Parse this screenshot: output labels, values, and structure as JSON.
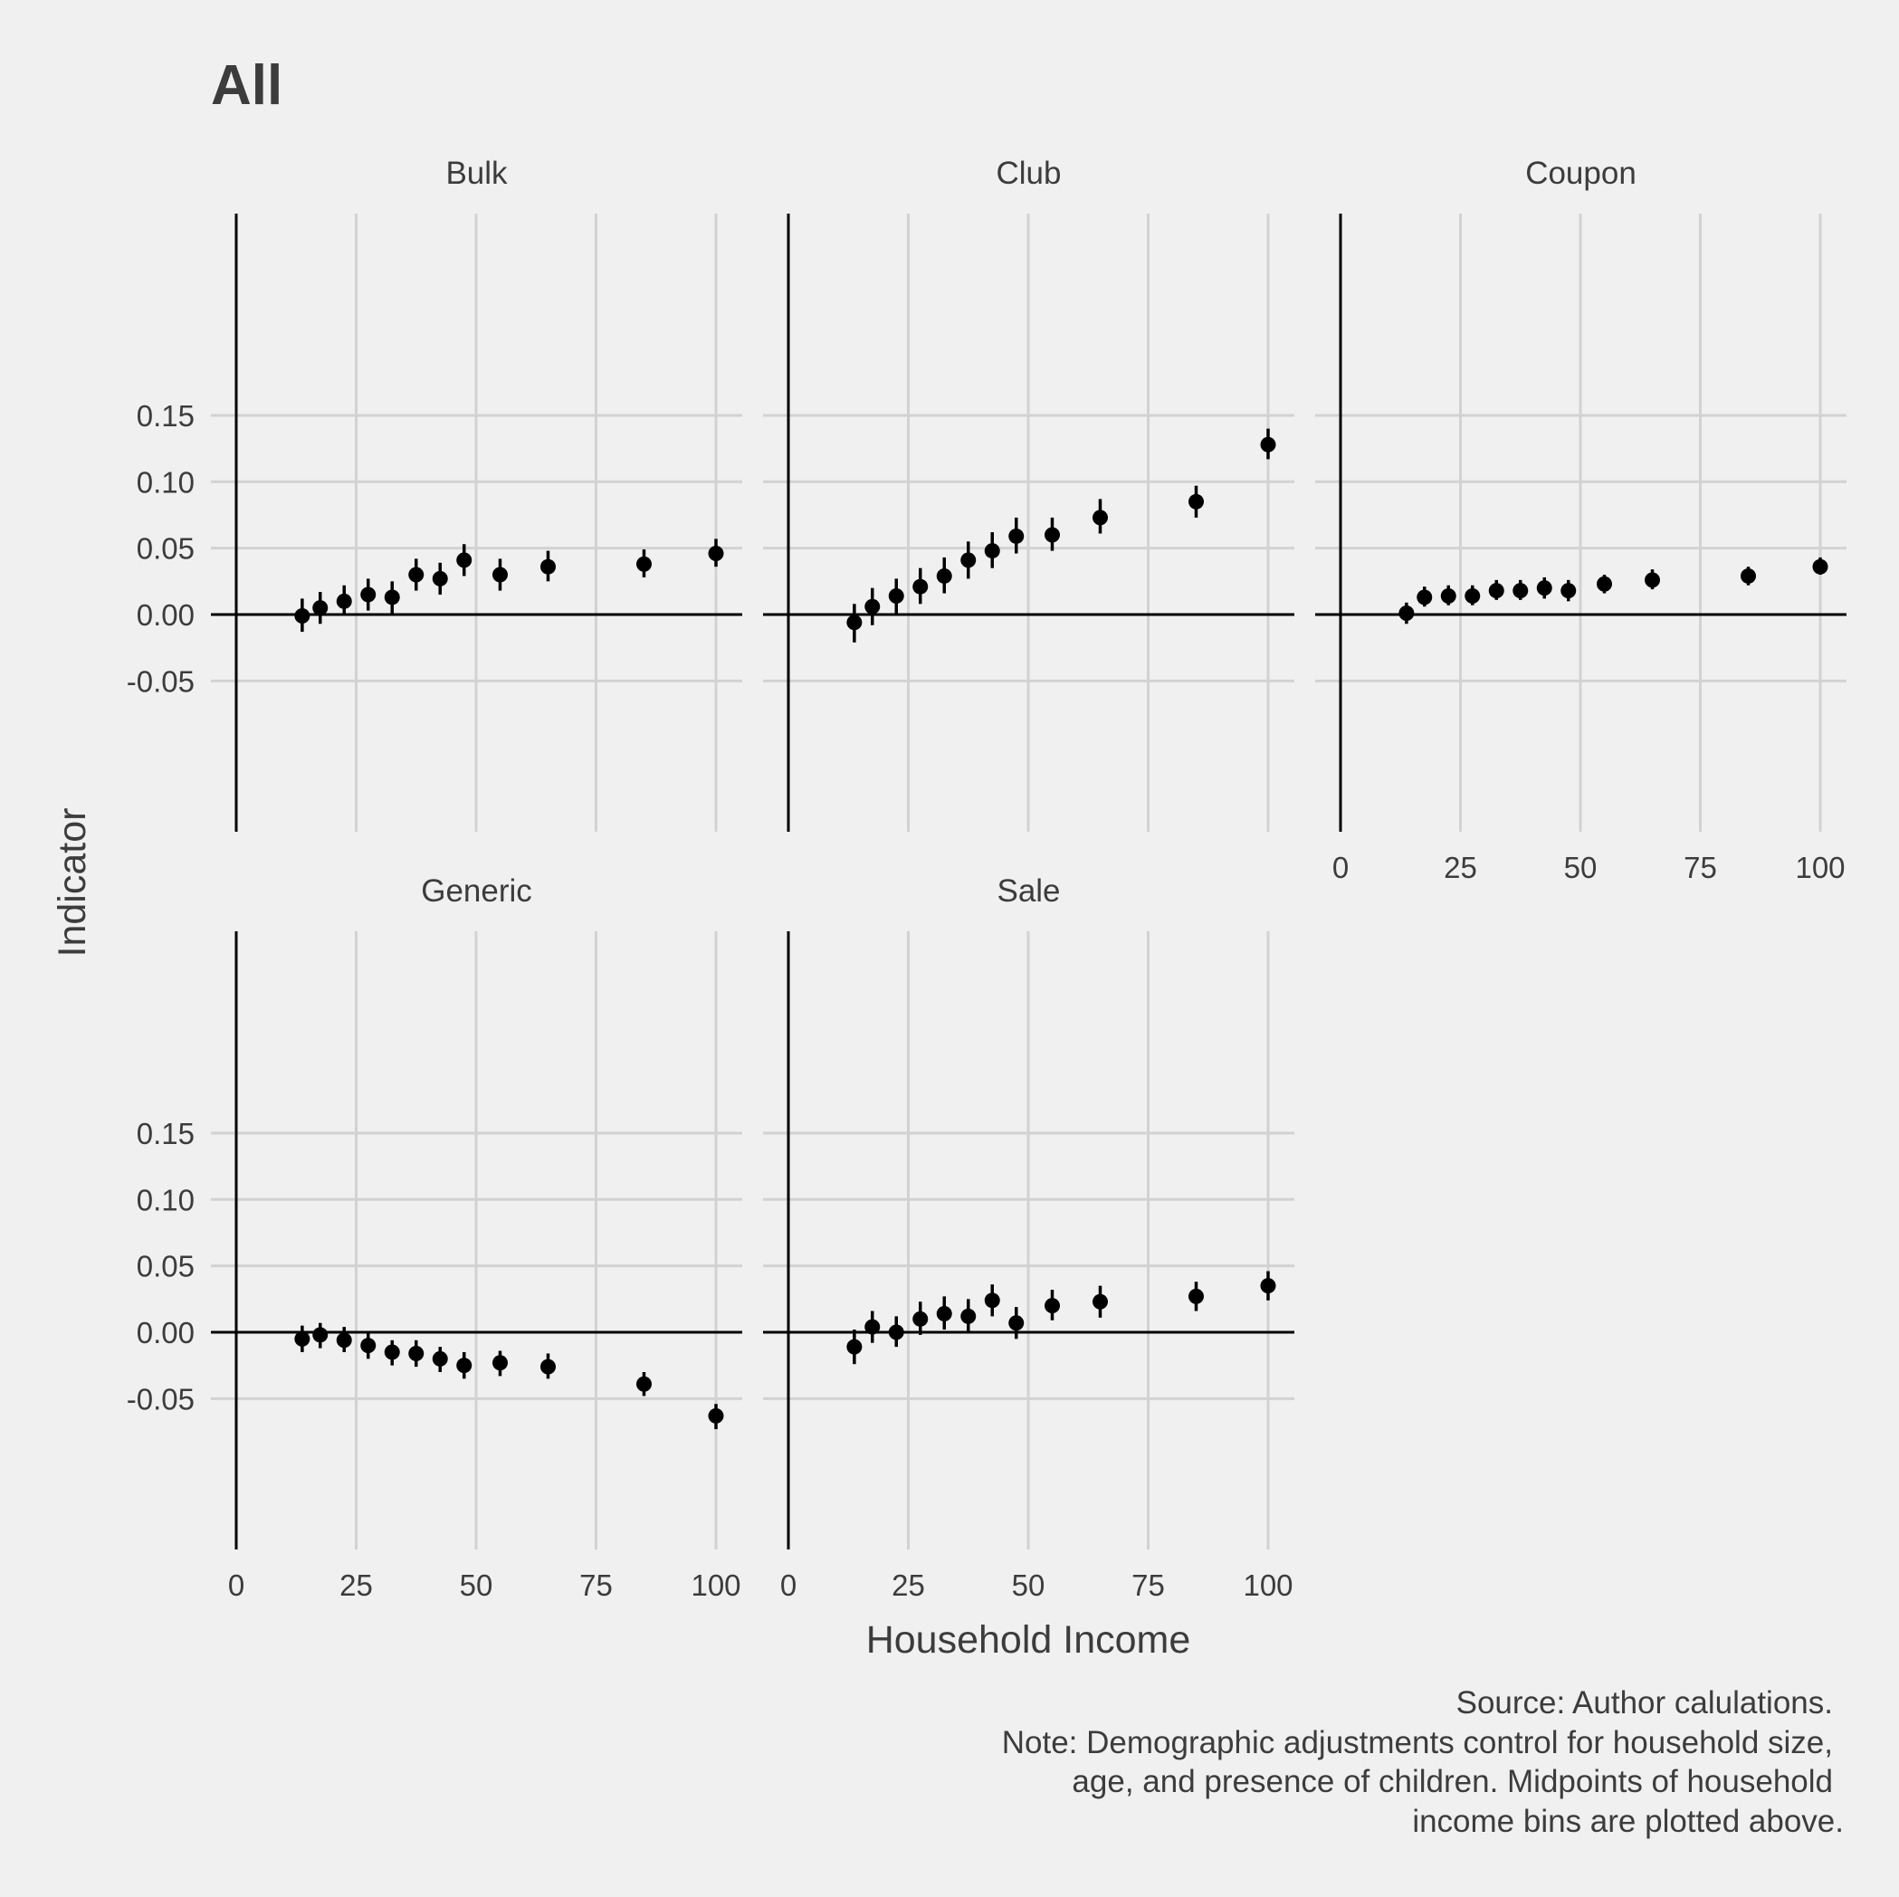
{
  "chart_data": {
    "type": "scatter",
    "title": "All",
    "xlabel": "Household Income",
    "ylabel": "Indicator",
    "caption": [
      "Source: Author calulations.",
      "Note: Demographic adjustments control for household size,",
      "age, and presence of children. Midpoints of household",
      "income bins are plotted above."
    ],
    "xlim": [
      0,
      100
    ],
    "ylim": [
      -0.08,
      0.15
    ],
    "x_ticks": [
      0,
      25,
      50,
      75,
      100
    ],
    "x_tick_labels": [
      "0",
      "25",
      "50",
      "75",
      "100"
    ],
    "y_ticks": [
      -0.05,
      0.0,
      0.05,
      0.1,
      0.15
    ],
    "y_tick_labels": [
      "-0.05",
      "0.00",
      "0.05",
      "0.10",
      "0.15"
    ],
    "grid": true,
    "reference_lines": {
      "x": 0,
      "y": 0
    },
    "colors": {
      "background": "#f0f0f0",
      "grid": "#d2d2d2",
      "points": "#000000",
      "text": "#3c3c3c"
    },
    "x": [
      13.75,
      17.5,
      22.5,
      27.5,
      32.5,
      37.5,
      42.5,
      47.5,
      55,
      65,
      85,
      100
    ],
    "panels": [
      {
        "name": "Bulk",
        "y": [
          -0.001,
          0.005,
          0.01,
          0.015,
          0.013,
          0.03,
          0.027,
          0.041,
          0.03,
          0.036,
          0.038,
          0.046
        ],
        "ci_low": [
          -0.013,
          -0.007,
          -0.001,
          0.003,
          0.001,
          0.018,
          0.015,
          0.029,
          0.018,
          0.025,
          0.028,
          0.036
        ],
        "ci_high": [
          0.012,
          0.017,
          0.022,
          0.027,
          0.025,
          0.042,
          0.039,
          0.053,
          0.042,
          0.048,
          0.049,
          0.057
        ]
      },
      {
        "name": "Club",
        "y": [
          -0.006,
          0.006,
          0.014,
          0.021,
          0.029,
          0.041,
          0.048,
          0.059,
          0.06,
          0.073,
          0.085,
          0.128
        ],
        "ci_low": [
          -0.021,
          -0.008,
          0.001,
          0.008,
          0.016,
          0.027,
          0.035,
          0.046,
          0.048,
          0.061,
          0.073,
          0.117
        ],
        "ci_high": [
          0.008,
          0.02,
          0.027,
          0.035,
          0.043,
          0.055,
          0.062,
          0.073,
          0.073,
          0.087,
          0.097,
          0.14
        ]
      },
      {
        "name": "Coupon",
        "y": [
          0.001,
          0.013,
          0.014,
          0.014,
          0.018,
          0.018,
          0.02,
          0.018,
          0.023,
          0.026,
          0.029,
          0.036
        ],
        "ci_low": [
          -0.007,
          0.006,
          0.007,
          0.007,
          0.011,
          0.011,
          0.012,
          0.01,
          0.016,
          0.019,
          0.022,
          0.03
        ],
        "ci_high": [
          0.009,
          0.021,
          0.022,
          0.022,
          0.026,
          0.026,
          0.028,
          0.026,
          0.03,
          0.034,
          0.036,
          0.043
        ]
      },
      {
        "name": "Generic",
        "y": [
          -0.005,
          -0.002,
          -0.006,
          -0.01,
          -0.015,
          -0.016,
          -0.02,
          -0.025,
          -0.023,
          -0.026,
          -0.039,
          -0.063
        ],
        "ci_low": [
          -0.015,
          -0.012,
          -0.015,
          -0.02,
          -0.025,
          -0.026,
          -0.03,
          -0.035,
          -0.033,
          -0.035,
          -0.048,
          -0.073
        ],
        "ci_high": [
          0.005,
          0.007,
          0.004,
          0.0,
          -0.006,
          -0.006,
          -0.011,
          -0.015,
          -0.014,
          -0.016,
          -0.03,
          -0.054
        ]
      },
      {
        "name": "Sale",
        "y": [
          -0.011,
          0.004,
          0.0,
          0.01,
          0.014,
          0.012,
          0.024,
          0.007,
          0.02,
          0.023,
          0.027,
          0.035
        ],
        "ci_low": [
          -0.024,
          -0.008,
          -0.011,
          -0.002,
          0.002,
          0.0,
          0.012,
          -0.005,
          0.009,
          0.011,
          0.016,
          0.024
        ],
        "ci_high": [
          0.002,
          0.016,
          0.012,
          0.023,
          0.027,
          0.025,
          0.036,
          0.019,
          0.032,
          0.035,
          0.038,
          0.046
        ]
      }
    ]
  }
}
